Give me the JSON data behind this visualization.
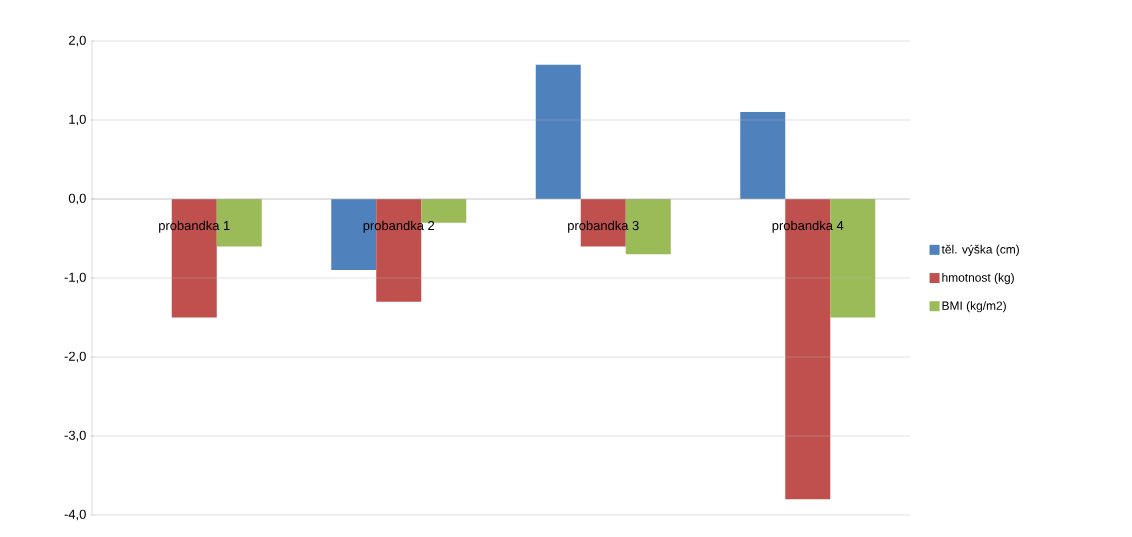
{
  "chart_data": {
    "type": "bar",
    "categories": [
      "probandka 1",
      "probandka 2",
      "probandka 3",
      "probandka 4"
    ],
    "series": [
      {
        "name": "těl. výška (cm)",
        "color": "#4f81bd",
        "values": [
          0,
          -0.9,
          1.7,
          1.1
        ]
      },
      {
        "name": "hmotnost (kg)",
        "color": "#c0504d",
        "values": [
          -1.5,
          -1.3,
          -0.6,
          -3.8
        ]
      },
      {
        "name": "BMI (kg/m2)",
        "color": "#9bbb59",
        "values": [
          -0.6,
          -0.3,
          -0.7,
          -1.5
        ]
      }
    ],
    "ylim": [
      -4,
      2
    ],
    "yticks": [
      {
        "value": -4,
        "label": "-4,0"
      },
      {
        "value": -3,
        "label": "-3,0"
      },
      {
        "value": -2,
        "label": "-2,0"
      },
      {
        "value": -1,
        "label": "-1,0"
      },
      {
        "value": 0,
        "label": "0,0"
      },
      {
        "value": 1,
        "label": "1,0"
      },
      {
        "value": 2,
        "label": "2,0"
      }
    ],
    "grid": "y",
    "legend": "right"
  }
}
